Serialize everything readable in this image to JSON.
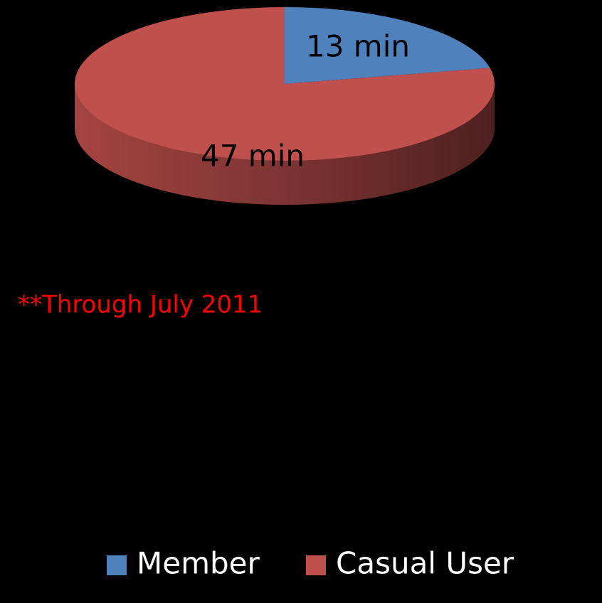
{
  "chart_data": {
    "type": "pie",
    "categories": [
      "Member",
      "Casual User"
    ],
    "values": [
      13,
      47
    ],
    "value_labels": [
      "13 min",
      "47 min"
    ],
    "colors": [
      "#4f81bd",
      "#c0504d"
    ],
    "annotation": "**Through July 2011",
    "legend": "bottom"
  }
}
